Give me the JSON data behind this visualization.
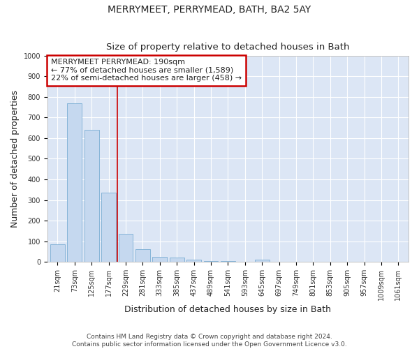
{
  "title": "MERRYMEET, PERRYMEAD, BATH, BA2 5AY",
  "subtitle": "Size of property relative to detached houses in Bath",
  "xlabel": "Distribution of detached houses by size in Bath",
  "ylabel": "Number of detached properties",
  "categories": [
    "21sqm",
    "73sqm",
    "125sqm",
    "177sqm",
    "229sqm",
    "281sqm",
    "333sqm",
    "385sqm",
    "437sqm",
    "489sqm",
    "541sqm",
    "593sqm",
    "645sqm",
    "697sqm",
    "749sqm",
    "801sqm",
    "853sqm",
    "905sqm",
    "957sqm",
    "1009sqm",
    "1061sqm"
  ],
  "values": [
    85,
    770,
    640,
    335,
    135,
    60,
    25,
    20,
    10,
    5,
    5,
    0,
    10,
    0,
    0,
    0,
    0,
    0,
    0,
    0,
    0
  ],
  "bar_color": "#c5d8ef",
  "bar_edge_color": "#7aadd4",
  "plot_bg_color": "#dce6f5",
  "fig_bg_color": "#ffffff",
  "grid_color": "#ffffff",
  "vline_x": 3.5,
  "vline_color": "#cc0000",
  "annotation_text": "MERRYMEET PERRYMEAD: 190sqm\n← 77% of detached houses are smaller (1,589)\n22% of semi-detached houses are larger (458) →",
  "annotation_box_color": "#cc0000",
  "annotation_bg": "#ffffff",
  "ylim": [
    0,
    1000
  ],
  "yticks": [
    0,
    100,
    200,
    300,
    400,
    500,
    600,
    700,
    800,
    900,
    1000
  ],
  "footer": "Contains HM Land Registry data © Crown copyright and database right 2024.\nContains public sector information licensed under the Open Government Licence v3.0.",
  "title_fontsize": 10,
  "subtitle_fontsize": 9.5,
  "label_fontsize": 9,
  "tick_fontsize": 7,
  "annot_fontsize": 8,
  "footer_fontsize": 6.5
}
